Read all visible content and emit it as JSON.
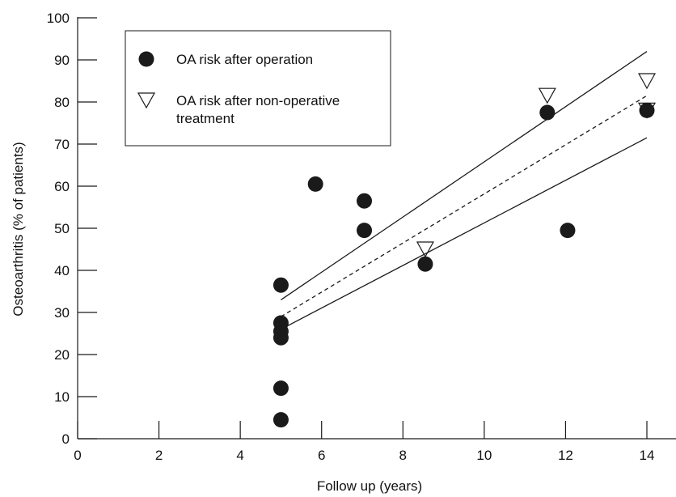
{
  "chart_data": {
    "type": "scatter",
    "xlabel": "Follow up (years)",
    "ylabel": "Osteoarthritis (% of patients)",
    "xlim": [
      0,
      14
    ],
    "ylim": [
      0,
      100
    ],
    "x_ticks": [
      0,
      2,
      4,
      6,
      8,
      10,
      12,
      14
    ],
    "y_ticks": [
      0,
      10,
      20,
      30,
      40,
      50,
      60,
      70,
      80,
      90,
      100
    ],
    "grid": false,
    "legend_position": "top-left",
    "series": [
      {
        "name": "OA risk after operation",
        "marker": "filled-circle",
        "color": "#1a1a1a",
        "points": [
          {
            "x": 5.0,
            "y": 4.5
          },
          {
            "x": 5.0,
            "y": 12
          },
          {
            "x": 5.0,
            "y": 24
          },
          {
            "x": 5.0,
            "y": 25.5
          },
          {
            "x": 5.0,
            "y": 27.5
          },
          {
            "x": 5.0,
            "y": 36.5
          },
          {
            "x": 5.85,
            "y": 60.5
          },
          {
            "x": 7.05,
            "y": 49.5
          },
          {
            "x": 7.05,
            "y": 56.5
          },
          {
            "x": 8.55,
            "y": 41.5
          },
          {
            "x": 11.55,
            "y": 77.5
          },
          {
            "x": 12.05,
            "y": 49.5
          },
          {
            "x": 14.0,
            "y": 78
          }
        ]
      },
      {
        "name": "OA risk after non-operative treatment",
        "marker": "open-triangle-down",
        "color": "#1a1a1a",
        "points": [
          {
            "x": 8.55,
            "y": 45
          },
          {
            "x": 11.55,
            "y": 81.5
          },
          {
            "x": 14.0,
            "y": 85
          },
          {
            "x": 14.0,
            "y": 78
          }
        ]
      }
    ],
    "lines": [
      {
        "style": "solid",
        "x": [
          5.0,
          14.0
        ],
        "y": [
          33,
          92
        ]
      },
      {
        "style": "dashed",
        "x": [
          5.0,
          14.0
        ],
        "y": [
          29,
          81.5
        ]
      },
      {
        "style": "solid",
        "x": [
          5.0,
          14.0
        ],
        "y": [
          26,
          71.5
        ]
      }
    ]
  }
}
